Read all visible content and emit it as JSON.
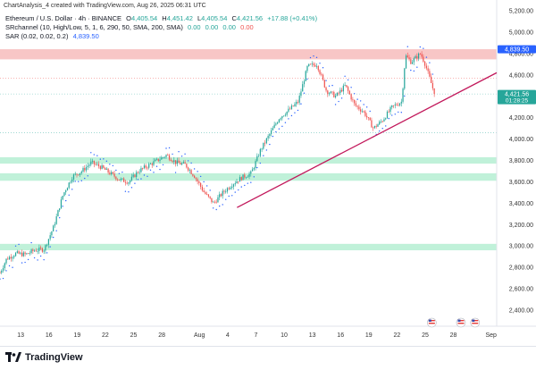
{
  "header": {
    "credit": "ChartAnalysis_4 created with TradingView.com, Aug 26, 2025 06:31 UTC"
  },
  "legend": {
    "symbol": "Ethereum / U.S. Dollar · 4h · BINANCE",
    "ohlc": [
      {
        "k": "O",
        "v": "4,405.54"
      },
      {
        "k": "H",
        "v": "4,451.42"
      },
      {
        "k": "L",
        "v": "4,405.54"
      },
      {
        "k": "C",
        "v": "4,421.56"
      }
    ],
    "change": "+17.88 (+0.41%)",
    "indicator1_label": "SRchannel (10, High/Low, 5, 1, 6, 290, 50, SMA, 200, SMA)",
    "indicator1_values": [
      "0.00",
      "0.00",
      "0.00",
      "0.00"
    ],
    "indicator2_label": "SAR (0.02, 0.02, 0.2)",
    "indicator2_value": "4,839.50"
  },
  "colors": {
    "up": "#26a69a",
    "down": "#ef5350",
    "resistance_zone": "#f7bcbc",
    "support_zone": "#b9f0d5",
    "trendline": "#c2185b",
    "sar": "#2962ff",
    "sar_badge": "#2962ff",
    "price_badge": "#26a69a"
  },
  "chart_data": {
    "type": "candlestick",
    "title": "",
    "xlabel": "",
    "ylabel": "",
    "ylim": [
      2250,
      5300
    ],
    "y_ticks": [
      "5,200.00",
      "5,000.00",
      "4,800.00",
      "4,600.00",
      "4,400.00",
      "4,200.00",
      "4,000.00",
      "3,800.00",
      "3,600.00",
      "3,400.00",
      "3,200.00",
      "3,000.00",
      "2,800.00",
      "2,600.00",
      "2,400.00"
    ],
    "y_tick_values": [
      5200,
      5000,
      4800,
      4600,
      4400,
      4200,
      4000,
      3800,
      3600,
      3400,
      3200,
      3000,
      2800,
      2600,
      2400
    ],
    "x_ticks": [
      {
        "label": "13",
        "day": 13
      },
      {
        "label": "16",
        "day": 16
      },
      {
        "label": "19",
        "day": 19
      },
      {
        "label": "22",
        "day": 22
      },
      {
        "label": "25",
        "day": 25
      },
      {
        "label": "28",
        "day": 28
      },
      {
        "label": "Aug",
        "day": 32
      },
      {
        "label": "4",
        "day": 35
      },
      {
        "label": "7",
        "day": 38
      },
      {
        "label": "10",
        "day": 41
      },
      {
        "label": "13",
        "day": 44
      },
      {
        "label": "16",
        "day": 47
      },
      {
        "label": "19",
        "day": 50
      },
      {
        "label": "22",
        "day": 53
      },
      {
        "label": "25",
        "day": 56
      },
      {
        "label": "28",
        "day": 59
      },
      {
        "label": "Sep",
        "day": 63
      }
    ],
    "x_range_days": [
      10.8,
      63.6
    ],
    "price_path": [
      [
        10.8,
        2750
      ],
      [
        11.5,
        2880
      ],
      [
        12.5,
        2930
      ],
      [
        13.5,
        2920
      ],
      [
        14.5,
        2960
      ],
      [
        15.5,
        2970
      ],
      [
        16.5,
        3180
      ],
      [
        17.5,
        3480
      ],
      [
        18.5,
        3650
      ],
      [
        19.5,
        3700
      ],
      [
        20.5,
        3780
      ],
      [
        21.5,
        3740
      ],
      [
        22.5,
        3680
      ],
      [
        23.5,
        3620
      ],
      [
        24.5,
        3600
      ],
      [
        25.5,
        3700
      ],
      [
        26.5,
        3750
      ],
      [
        27.5,
        3800
      ],
      [
        28.5,
        3850
      ],
      [
        29.5,
        3780
      ],
      [
        30.5,
        3760
      ],
      [
        31.5,
        3650
      ],
      [
        32.5,
        3500
      ],
      [
        33.5,
        3400
      ],
      [
        34.5,
        3500
      ],
      [
        35.5,
        3580
      ],
      [
        36.5,
        3640
      ],
      [
        37.5,
        3680
      ],
      [
        38.5,
        3900
      ],
      [
        39.5,
        4050
      ],
      [
        40.5,
        4200
      ],
      [
        41.5,
        4270
      ],
      [
        42.5,
        4350
      ],
      [
        43.5,
        4680
      ],
      [
        44.5,
        4700
      ],
      [
        45.5,
        4450
      ],
      [
        46.5,
        4400
      ],
      [
        47.5,
        4500
      ],
      [
        48.5,
        4320
      ],
      [
        49.5,
        4250
      ],
      [
        50.5,
        4100
      ],
      [
        51.5,
        4180
      ],
      [
        52.5,
        4300
      ],
      [
        53.5,
        4350
      ],
      [
        53.9,
        4780
      ],
      [
        54.5,
        4720
      ],
      [
        55.5,
        4800
      ],
      [
        56.0,
        4700
      ],
      [
        56.5,
        4560
      ],
      [
        57.0,
        4420
      ]
    ],
    "trendline": {
      "from": [
        36.0,
        3360
      ],
      "to": [
        63.6,
        4620
      ]
    },
    "resistance_zone": [
      4745,
      4840
    ],
    "support_zones": [
      [
        3770,
        3830
      ],
      [
        3610,
        3680
      ],
      [
        2960,
        3020
      ]
    ],
    "dashed_levels": [
      {
        "value": 4570,
        "color": "#ef5350"
      },
      {
        "value": 4421.56,
        "color": "#26a69a"
      },
      {
        "value": 4060,
        "color": "#26a69a"
      }
    ],
    "sar_value": 4839.5,
    "last_price": 4421.56,
    "badges": [
      {
        "text": "4,839.50",
        "value": 4839.5,
        "color": "#2962ff"
      },
      {
        "text": "4,421.56",
        "value": 4421.56,
        "color": "#26a69a",
        "sub": "01:28:25"
      }
    ]
  }
}
